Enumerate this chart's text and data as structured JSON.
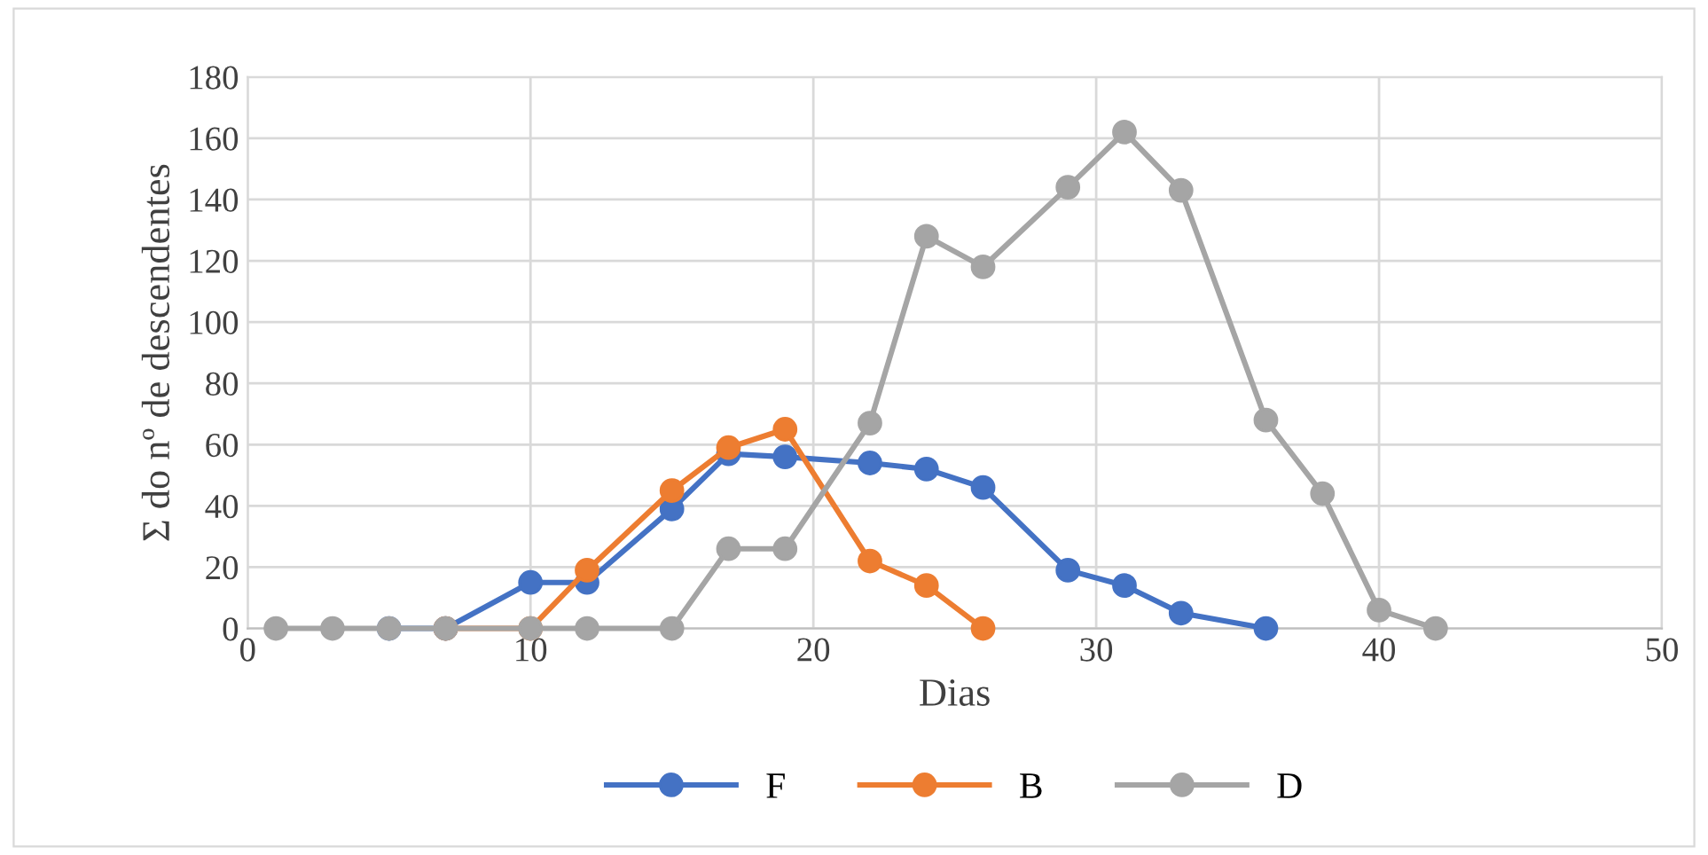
{
  "chart_data": {
    "type": "line",
    "xlabel": "Dias",
    "ylabel": "Σ do nº de descendentes",
    "xlim": [
      0,
      50
    ],
    "xticks": [
      0,
      10,
      20,
      30,
      40,
      50
    ],
    "ylim": [
      0,
      180
    ],
    "yticks": [
      0,
      20,
      40,
      60,
      80,
      100,
      120,
      140,
      160,
      180
    ],
    "grid": true,
    "legend": "bottom",
    "marker": "circle",
    "line_style": "solid",
    "series": [
      {
        "name": "F",
        "color": "#4472c4",
        "x": [
          5,
          7,
          10,
          12,
          15,
          17,
          19,
          22,
          24,
          26,
          29,
          31,
          33,
          36
        ],
        "values": [
          0,
          0,
          15,
          15,
          39,
          57,
          56,
          54,
          52,
          46,
          19,
          14,
          5,
          0
        ]
      },
      {
        "name": "B",
        "color": "#ed7d31",
        "x": [
          7,
          10,
          12,
          15,
          17,
          19,
          22,
          24,
          26
        ],
        "values": [
          0,
          0,
          19,
          45,
          59,
          65,
          22,
          14,
          0
        ]
      },
      {
        "name": "D",
        "color": "#a5a5a5",
        "x": [
          1,
          3,
          5,
          7,
          10,
          12,
          15,
          17,
          19,
          22,
          24,
          26,
          29,
          31,
          33,
          36,
          38,
          40,
          42
        ],
        "values": [
          0,
          0,
          0,
          0,
          0,
          0,
          0,
          26,
          26,
          67,
          128,
          118,
          144,
          162,
          143,
          68,
          44,
          6,
          0
        ]
      }
    ]
  }
}
